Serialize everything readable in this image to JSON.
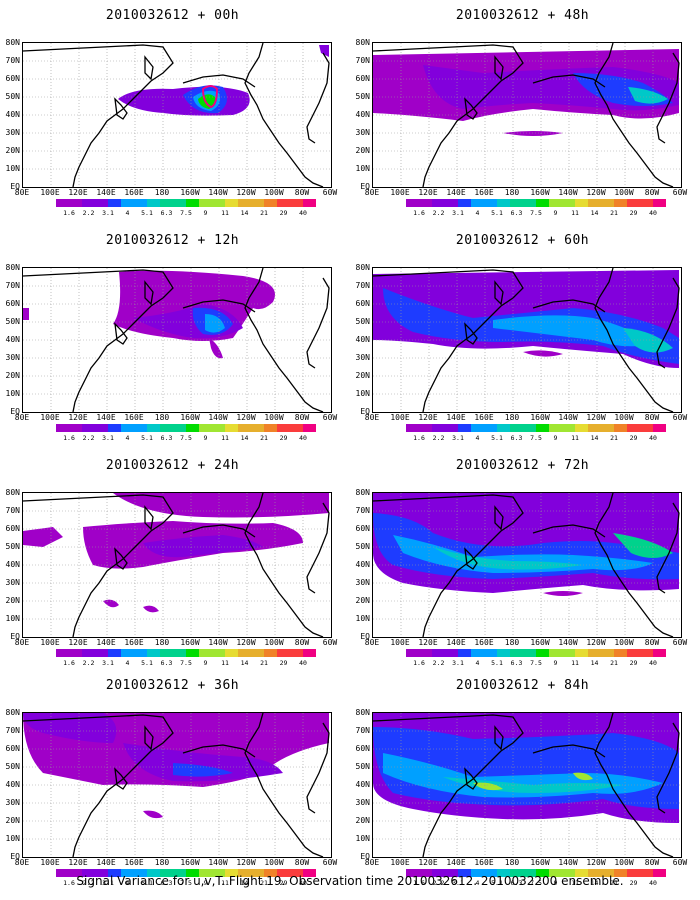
{
  "caption": "Signal Variance for u,v,T. Flight 19. Observation time 2010032612. 2010032200 ensemble.",
  "lat_labels": [
    "80N",
    "70N",
    "60N",
    "50N",
    "40N",
    "30N",
    "20N",
    "10N",
    "EQ"
  ],
  "lon_labels": [
    "80E",
    "100E",
    "120E",
    "140E",
    "160E",
    "180",
    "160W",
    "140W",
    "120W",
    "100W",
    "80W",
    "60W"
  ],
  "colorbar": {
    "levels": [
      "1.6",
      "2.2",
      "3.1",
      "4",
      "5.1",
      "6.3",
      "7.5",
      "9",
      "11",
      "14",
      "21",
      "29",
      "40"
    ],
    "colors": [
      "#a000c8",
      "#8200dc",
      "#1e3cff",
      "#00a0ff",
      "#00c8c8",
      "#00d28c",
      "#00dc00",
      "#a0e632",
      "#e6dc32",
      "#e6af2d",
      "#f08228",
      "#fa3c3c",
      "#f00082"
    ]
  },
  "panels": [
    {
      "title": "2010032612 + 00h",
      "lead_hours": 0
    },
    {
      "title": "2010032612 + 48h",
      "lead_hours": 48
    },
    {
      "title": "2010032612 + 12h",
      "lead_hours": 12
    },
    {
      "title": "2010032612 + 60h",
      "lead_hours": 60
    },
    {
      "title": "2010032612 + 24h",
      "lead_hours": 24
    },
    {
      "title": "2010032612 + 72h",
      "lead_hours": 72
    },
    {
      "title": "2010032612 + 36h",
      "lead_hours": 36
    },
    {
      "title": "2010032612 + 84h",
      "lead_hours": 84
    }
  ]
}
